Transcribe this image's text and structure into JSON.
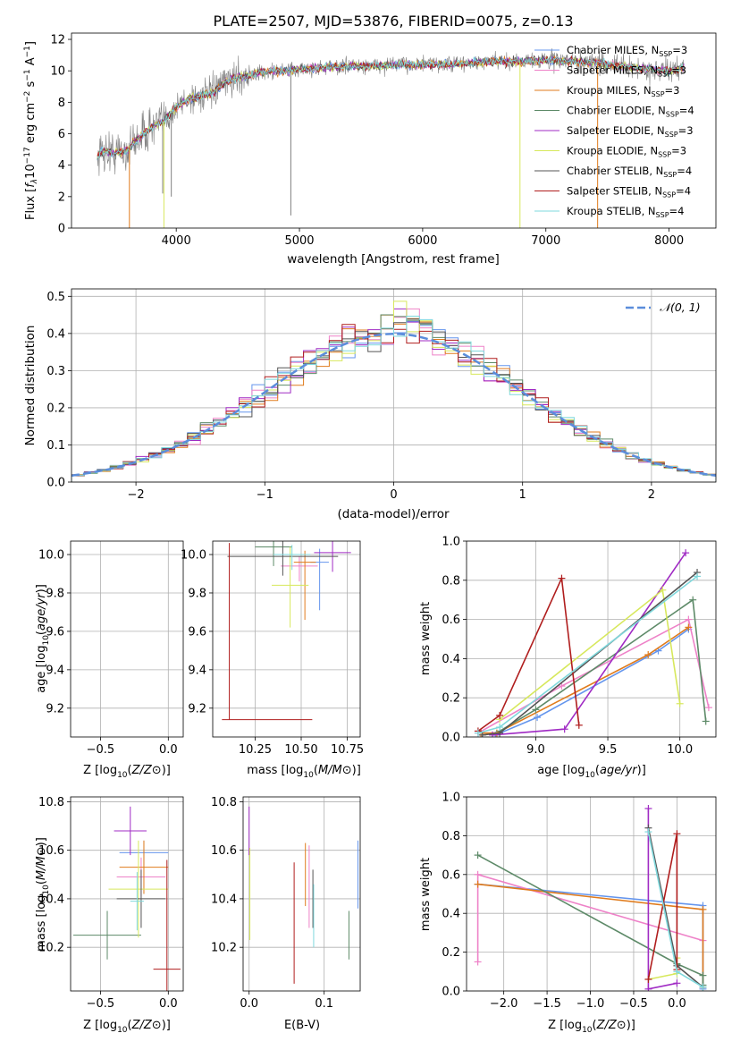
{
  "figure_title": "PLATE=2507, MJD=53876, FIBERID=0075, z=0.13",
  "colors": {
    "Chabrier MILES": "#6495ed",
    "Salpeter MILES": "#ee82c8",
    "Kroupa MILES": "#e07b1c",
    "Chabrier ELODIE": "#5d8a68",
    "Salpeter ELODIE": "#a02bc4",
    "Kroupa ELODIE": "#d7e85c",
    "Chabrier STELIB": "#555555",
    "Salpeter STELIB": "#b01e1e",
    "Kroupa STELIB": "#7fd8dc",
    "observed": "#808080",
    "gaussian": "#5b8ddb"
  },
  "chart_data": [
    {
      "type": "line",
      "panel": "spectrum",
      "xlabel": "wavelength [Angstrom, rest frame]",
      "ylabel": "Flux [f_λ 10^-17 erg cm^-2 s^-1 A^-1]",
      "xlim": [
        3150,
        8380
      ],
      "ylim": [
        0,
        12.4
      ],
      "xticks": [
        4000,
        5000,
        6000,
        7000,
        8000
      ],
      "yticks": [
        0,
        2,
        4,
        6,
        8,
        10,
        12
      ],
      "legend": "right",
      "legend_entries": [
        {
          "label": "Chabrier MILES, N",
          "sub": "SSP",
          "suffix": "=3",
          "color_key": "Chabrier MILES"
        },
        {
          "label": "Salpeter MILES, N",
          "sub": "SSP",
          "suffix": "=3",
          "color_key": "Salpeter MILES"
        },
        {
          "label": "Kroupa MILES, N",
          "sub": "SSP",
          "suffix": "=3",
          "color_key": "Kroupa MILES"
        },
        {
          "label": "Chabrier ELODIE, N",
          "sub": "SSP",
          "suffix": "=4",
          "color_key": "Chabrier ELODIE"
        },
        {
          "label": "Salpeter ELODIE, N",
          "sub": "SSP",
          "suffix": "=3",
          "color_key": "Salpeter ELODIE"
        },
        {
          "label": "Kroupa ELODIE, N",
          "sub": "SSP",
          "suffix": "=3",
          "color_key": "Kroupa ELODIE"
        },
        {
          "label": "Chabrier STELIB, N",
          "sub": "SSP",
          "suffix": "=4",
          "color_key": "Chabrier STELIB"
        },
        {
          "label": "Salpeter STELIB, N",
          "sub": "SSP",
          "suffix": "=4",
          "color_key": "Salpeter STELIB"
        },
        {
          "label": "Kroupa STELIB, N",
          "sub": "SSP",
          "suffix": "=4",
          "color_key": "Kroupa STELIB"
        }
      ],
      "continuum": [
        [
          3360,
          4.6
        ],
        [
          3400,
          4.9
        ],
        [
          3500,
          4.8
        ],
        [
          3600,
          4.9
        ],
        [
          3700,
          5.8
        ],
        [
          3800,
          6.4
        ],
        [
          3900,
          6.8
        ],
        [
          4000,
          7.7
        ],
        [
          4100,
          8.2
        ],
        [
          4200,
          8.4
        ],
        [
          4300,
          8.6
        ],
        [
          4400,
          9.3
        ],
        [
          4500,
          9.6
        ],
        [
          4600,
          9.7
        ],
        [
          4700,
          9.9
        ],
        [
          4800,
          10.0
        ],
        [
          4900,
          10.0
        ],
        [
          5000,
          10.1
        ],
        [
          5200,
          10.2
        ],
        [
          5400,
          10.3
        ],
        [
          5600,
          10.3
        ],
        [
          5800,
          10.4
        ],
        [
          6000,
          10.4
        ],
        [
          6200,
          10.4
        ],
        [
          6400,
          10.5
        ],
        [
          6600,
          10.6
        ],
        [
          6800,
          10.6
        ],
        [
          7000,
          10.7
        ],
        [
          7200,
          10.6
        ],
        [
          7400,
          10.5
        ],
        [
          7600,
          10.3
        ],
        [
          7800,
          10.1
        ],
        [
          8000,
          10.0
        ],
        [
          8120,
          10.2
        ]
      ],
      "drops": [
        {
          "x": 3620,
          "y": 0,
          "color_key": "Kroupa MILES"
        },
        {
          "x": 3900,
          "y": 0,
          "color_key": "Kroupa ELODIE"
        },
        {
          "x": 6790,
          "y": 0,
          "color_key": "Kroupa ELODIE"
        },
        {
          "x": 7420,
          "y": 0,
          "color_key": "Kroupa MILES"
        },
        {
          "x": 4930,
          "y": 0.8,
          "color_key": "observed"
        },
        {
          "x": 3890,
          "y": 2.2,
          "color_key": "observed"
        },
        {
          "x": 3960,
          "y": 2.0,
          "color_key": "observed"
        }
      ]
    },
    {
      "type": "bar",
      "panel": "residual_histograms",
      "xlabel": "(data-model)/error",
      "ylabel": "Normed distribution",
      "xlim": [
        -2.5,
        2.5
      ],
      "ylim": [
        0,
        0.52
      ],
      "xticks": [
        -2,
        -1,
        0,
        1,
        2
      ],
      "yticks": [
        0.0,
        0.1,
        0.2,
        0.3,
        0.4,
        0.5
      ],
      "legend": "top-right",
      "gaussian_label": "𝒩(0, 1)",
      "bin_width": 0.1
    },
    {
      "type": "scatter",
      "panel": "age_vs_Z",
      "xlabel": "Z [log10(Z/Z⊙)]",
      "ylabel": "age [log10(age/yr)]",
      "xlim": [
        -0.72,
        0.11
      ],
      "ylim": [
        9.05,
        10.07
      ],
      "xticks": [
        -0.5,
        0.0
      ],
      "yticks": [
        9.2,
        9.4,
        9.6,
        9.8,
        10.0
      ],
      "points": [
        {
          "series": "Chabrier MILES",
          "x": -0.15,
          "y": 9.95,
          "xerr": 0.15,
          "yerr": [
            0.14,
            0.05
          ]
        },
        {
          "series": "Salpeter MILES",
          "x": -0.2,
          "y": 9.93,
          "xerr": 0.12,
          "yerr": [
            0.27,
            0.08
          ]
        },
        {
          "series": "Kroupa MILES",
          "x": -0.18,
          "y": 9.96,
          "xerr": 0.17,
          "yerr": [
            0.32,
            0.1
          ]
        },
        {
          "series": "Chabrier ELODIE",
          "x": -0.38,
          "y": 9.96,
          "xerr": 0.32,
          "yerr": [
            0.12,
            0.12
          ]
        },
        {
          "series": "Salpeter ELODIE",
          "x": -0.13,
          "y": 10.01,
          "xerr": 0.15,
          "yerr": [
            0.12,
            0.1
          ]
        },
        {
          "series": "Kroupa ELODIE",
          "x": -0.16,
          "y": 9.84,
          "xerr": 0.25,
          "yerr": [
            0.3,
            0.2
          ]
        },
        {
          "series": "Chabrier STELIB",
          "x": -0.33,
          "y": 9.99,
          "xerr": 0.38,
          "yerr": [
            0.14,
            0.09
          ]
        },
        {
          "series": "Salpeter STELIB",
          "x": -0.01,
          "y": 9.14,
          "xerr": 0.1,
          "yerr": [
            0.0,
            0.92
          ]
        },
        {
          "series": "Kroupa STELIB",
          "x": -0.25,
          "y": 10.0,
          "xerr": 0.18,
          "yerr": [
            0.1,
            0.06
          ]
        }
      ]
    },
    {
      "type": "scatter",
      "panel": "age_vs_mass",
      "xlabel": "mass [log10(M/M⊙)]",
      "ylabel": "",
      "xlim": [
        10.02,
        10.82
      ],
      "ylim": [
        9.05,
        10.07
      ],
      "xticks": [
        10.25,
        10.5,
        10.75
      ],
      "xtick_labels": [
        "10.25",
        "10.50",
        "10.75"
      ],
      "yticks": [
        9.2,
        9.4,
        9.6,
        9.8,
        10.0
      ],
      "points": [
        {
          "series": "Chabrier MILES",
          "x": 10.6,
          "y": 9.96,
          "xerr": 0.05,
          "yerr": [
            0.25,
            0.07
          ]
        },
        {
          "series": "Salpeter MILES",
          "x": 10.49,
          "y": 9.94,
          "xerr": 0.1,
          "yerr": [
            0.08,
            0.05
          ]
        },
        {
          "series": "Kroupa MILES",
          "x": 10.52,
          "y": 9.96,
          "xerr": 0.06,
          "yerr": [
            0.3,
            0.06
          ]
        },
        {
          "series": "Chabrier ELODIE",
          "x": 10.35,
          "y": 10.04,
          "xerr": 0.1,
          "yerr": [
            0.1,
            0.05
          ]
        },
        {
          "series": "Salpeter ELODIE",
          "x": 10.67,
          "y": 10.01,
          "xerr": 0.1,
          "yerr": [
            0.1,
            0.08
          ]
        },
        {
          "series": "Kroupa ELODIE",
          "x": 10.44,
          "y": 9.84,
          "xerr": 0.1,
          "yerr": [
            0.22,
            0.2
          ]
        },
        {
          "series": "Chabrier STELIB",
          "x": 10.4,
          "y": 9.99,
          "xerr": 0.3,
          "yerr": [
            0.1,
            0.1
          ]
        },
        {
          "series": "Salpeter STELIB",
          "x": 10.11,
          "y": 9.14,
          "xerr": [
            0.04,
            0.45
          ],
          "yerr": [
            0.0,
            0.92
          ]
        },
        {
          "series": "Kroupa STELIB",
          "x": 10.45,
          "y": 10.0,
          "xerr": 0.1,
          "yerr": [
            0.08,
            0.05
          ]
        }
      ]
    },
    {
      "type": "line",
      "panel": "mass_weight_vs_age",
      "xlabel": "age [log10(age/yr)]",
      "ylabel": "mass weight",
      "xlim": [
        8.52,
        10.25
      ],
      "ylim": [
        0,
        1.0
      ],
      "xticks": [
        9.0,
        9.5,
        10.0
      ],
      "yticks": [
        0.0,
        0.2,
        0.4,
        0.6,
        0.8,
        1.0
      ],
      "series": [
        {
          "name": "Chabrier MILES",
          "x": [
            8.72,
            9.01,
            9.85,
            10.06
          ],
          "y": [
            0.01,
            0.1,
            0.44,
            0.55
          ]
        },
        {
          "name": "Salpeter MILES",
          "x": [
            8.6,
            9.18,
            10.06,
            10.2
          ],
          "y": [
            0.02,
            0.26,
            0.6,
            0.15
          ]
        },
        {
          "name": "Kroupa MILES",
          "x": [
            8.62,
            8.73,
            9.78,
            10.06
          ],
          "y": [
            0.02,
            0.02,
            0.42,
            0.56
          ]
        },
        {
          "name": "Chabrier ELODIE",
          "x": [
            8.75,
            9.0,
            10.09,
            10.18
          ],
          "y": [
            0.03,
            0.14,
            0.7,
            0.08
          ]
        },
        {
          "name": "Salpeter ELODIE",
          "x": [
            8.7,
            9.2,
            10.04
          ],
          "y": [
            0.01,
            0.04,
            0.94
          ]
        },
        {
          "name": "Kroupa ELODIE",
          "x": [
            8.75,
            9.88,
            10.0
          ],
          "y": [
            0.09,
            0.75,
            0.17
          ]
        },
        {
          "name": "Chabrier STELIB",
          "x": [
            8.63,
            8.75,
            10.12
          ],
          "y": [
            0.01,
            0.02,
            0.84
          ]
        },
        {
          "name": "Salpeter STELIB",
          "x": [
            8.6,
            8.75,
            9.18,
            9.3
          ],
          "y": [
            0.03,
            0.11,
            0.81,
            0.06
          ]
        },
        {
          "name": "Kroupa STELIB",
          "x": [
            8.6,
            8.75,
            10.12
          ],
          "y": [
            0.02,
            0.05,
            0.82
          ]
        }
      ]
    },
    {
      "type": "scatter",
      "panel": "mass_vs_Z",
      "xlabel": "Z [log10(Z/Z⊙)]",
      "ylabel": "mass [log10(M/M⊙)]",
      "xlim": [
        -0.72,
        0.11
      ],
      "ylim": [
        10.02,
        10.82
      ],
      "xticks": [
        -0.5,
        0.0
      ],
      "yticks": [
        10.2,
        10.4,
        10.6,
        10.8
      ],
      "points": [
        {
          "series": "Chabrier MILES",
          "x": -0.18,
          "y": 10.59,
          "xerr": 0.18,
          "yerr": 0.05
        },
        {
          "series": "Salpeter MILES",
          "x": -0.2,
          "y": 10.49,
          "xerr": 0.18,
          "yerr": 0.08
        },
        {
          "series": "Kroupa MILES",
          "x": -0.18,
          "y": 10.53,
          "xerr": 0.18,
          "yerr": 0.11
        },
        {
          "series": "Chabrier ELODIE",
          "x": -0.45,
          "y": 10.25,
          "xerr": 0.25,
          "yerr": 0.1
        },
        {
          "series": "Salpeter ELODIE",
          "x": -0.28,
          "y": 10.68,
          "xerr": 0.12,
          "yerr": 0.1
        },
        {
          "series": "Kroupa ELODIE",
          "x": -0.22,
          "y": 10.44,
          "xerr": 0.22,
          "yerr": 0.2
        },
        {
          "series": "Chabrier STELIB",
          "x": -0.2,
          "y": 10.4,
          "xerr": 0.18,
          "yerr": 0.12
        },
        {
          "series": "Salpeter STELIB",
          "x": -0.01,
          "y": 10.11,
          "xerr": 0.1,
          "yerr": 0.45
        },
        {
          "series": "Kroupa STELIB",
          "x": -0.23,
          "y": 10.39,
          "xerr": 0.05,
          "yerr": 0.12
        }
      ]
    },
    {
      "type": "scatter",
      "panel": "mass_vs_ebv",
      "xlabel": "E(B-V)",
      "ylabel": "",
      "xlim": [
        -0.008,
        0.148
      ],
      "ylim": [
        10.02,
        10.82
      ],
      "xticks": [
        0.0,
        0.1
      ],
      "yticks": [
        10.2,
        10.4,
        10.6,
        10.8
      ],
      "points": [
        {
          "series": "Chabrier MILES",
          "x": 0.145,
          "y": 10.5,
          "xerr": 0,
          "yerr": 0.14
        },
        {
          "series": "Salpeter MILES",
          "x": 0.08,
          "y": 10.45,
          "xerr": 0,
          "yerr": 0.17
        },
        {
          "series": "Kroupa MILES",
          "x": 0.075,
          "y": 10.5,
          "xerr": 0,
          "yerr": 0.13
        },
        {
          "series": "Chabrier ELODIE",
          "x": 0.133,
          "y": 10.25,
          "xerr": 0,
          "yerr": 0.1
        },
        {
          "series": "Salpeter ELODIE",
          "x": 0.0,
          "y": 10.68,
          "xerr": 0,
          "yerr": 0.1
        },
        {
          "series": "Kroupa ELODIE",
          "x": 0.001,
          "y": 10.42,
          "xerr": 0,
          "yerr": 0.19
        },
        {
          "series": "Chabrier STELIB",
          "x": 0.085,
          "y": 10.4,
          "xerr": 0,
          "yerr": 0.12
        },
        {
          "series": "Salpeter STELIB",
          "x": 0.06,
          "y": 10.3,
          "xerr": 0,
          "yerr": 0.25
        },
        {
          "series": "Kroupa STELIB",
          "x": 0.086,
          "y": 10.33,
          "xerr": 0,
          "yerr": 0.13
        }
      ]
    },
    {
      "type": "line",
      "panel": "mass_weight_vs_Z",
      "xlabel": "Z [log10(Z/Z⊙)]",
      "ylabel": "mass weight",
      "xlim": [
        -2.43,
        0.45
      ],
      "ylim": [
        0,
        1.0
      ],
      "xticks": [
        -2.0,
        -1.5,
        -1.0,
        -0.5,
        0.0
      ],
      "yticks": [
        0.0,
        0.2,
        0.4,
        0.6,
        0.8,
        1.0
      ],
      "series": [
        {
          "name": "Chabrier MILES",
          "x": [
            -2.3,
            0.3,
            0.3
          ],
          "y": [
            0.55,
            0.44,
            0.01
          ]
        },
        {
          "name": "Salpeter MILES",
          "x": [
            -2.3,
            -2.3,
            0.3
          ],
          "y": [
            0.15,
            0.6,
            0.26
          ]
        },
        {
          "name": "Kroupa MILES",
          "x": [
            -2.3,
            0.3,
            0.3
          ],
          "y": [
            0.55,
            0.42,
            0.02
          ]
        },
        {
          "name": "Chabrier ELODIE",
          "x": [
            -2.3,
            0.0,
            0.3,
            0.3
          ],
          "y": [
            0.7,
            0.14,
            0.08,
            0.03
          ]
        },
        {
          "name": "Salpeter ELODIE",
          "x": [
            -0.33,
            -0.33,
            0.0
          ],
          "y": [
            0.94,
            0.01,
            0.04
          ]
        },
        {
          "name": "Kroupa ELODIE",
          "x": [
            -0.33,
            0.0,
            0.0
          ],
          "y": [
            0.06,
            0.09,
            0.17
          ]
        },
        {
          "name": "Chabrier STELIB",
          "x": [
            -0.33,
            0.0,
            0.3
          ],
          "y": [
            0.84,
            0.13,
            0.02
          ]
        },
        {
          "name": "Salpeter STELIB",
          "x": [
            -0.33,
            0.0,
            0.0
          ],
          "y": [
            0.06,
            0.81,
            0.11
          ]
        },
        {
          "name": "Kroupa STELIB",
          "x": [
            -0.33,
            0.0,
            0.3
          ],
          "y": [
            0.82,
            0.1,
            0.02
          ]
        }
      ]
    }
  ]
}
